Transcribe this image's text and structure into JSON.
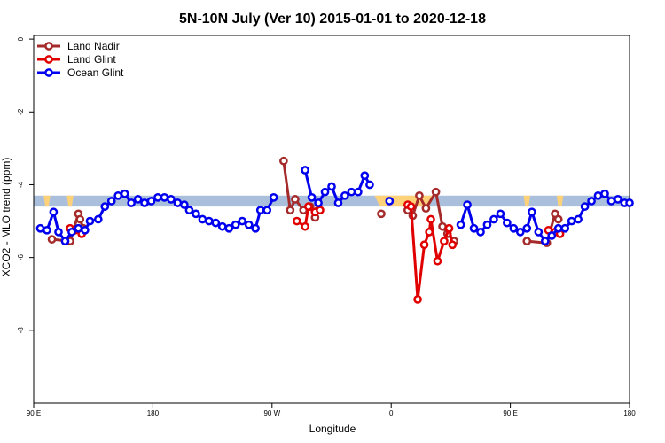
{
  "chart_data": {
    "type": "line",
    "title": "5N-10N July (Ver 10)   2015-01-01 to 2020-12-18",
    "xlabel": "Longitude",
    "ylabel": "XCO2 - MLO trend (ppm)",
    "xlim": [
      0,
      360
    ],
    "ylim": [
      -10,
      0.1
    ],
    "x_ticks": [
      {
        "value": 0,
        "label": "90 E"
      },
      {
        "value": 72,
        "label": "180"
      },
      {
        "value": 144,
        "label": "90 W"
      },
      {
        "value": 216,
        "label": "0"
      },
      {
        "value": 288,
        "label": "90 E"
      },
      {
        "value": 360,
        "label": "180"
      }
    ],
    "y_ticks": [
      0,
      -2,
      -4,
      -6,
      -8
    ],
    "legend_position": "top-left",
    "band": {
      "y_low": -4.6,
      "y_high": -4.3,
      "color": "#a9bfdc"
    },
    "highlight_color": "#ffd27a",
    "highlight_ranges": [
      [
        6,
        10
      ],
      [
        20,
        24
      ],
      [
        206,
        242
      ],
      [
        296,
        300
      ],
      [
        316,
        320
      ]
    ],
    "series": [
      {
        "name": "Land Nadir",
        "color": "#a52a2a",
        "segments": [
          [
            [
              11,
              -5.5
            ],
            [
              22,
              -5.55
            ],
            [
              27,
              -4.8
            ],
            [
              28,
              -4.95
            ],
            [
              30,
              -5.2
            ]
          ],
          [
            [
              151,
              -3.35
            ],
            [
              155,
              -4.7
            ],
            [
              158,
              -4.4
            ],
            [
              163,
              -4.7
            ],
            [
              167,
              -4.6
            ],
            [
              170,
              -4.9
            ],
            [
              172,
              -4.7
            ]
          ],
          [
            [
              210,
              -4.8
            ]
          ],
          [
            [
              226,
              -4.7
            ],
            [
              229,
              -4.85
            ],
            [
              233,
              -4.3
            ],
            [
              237,
              -4.65
            ],
            [
              243,
              -4.2
            ],
            [
              247,
              -5.15
            ],
            [
              250,
              -5.35
            ],
            [
              254,
              -5.55
            ]
          ],
          [
            [
              298,
              -5.55
            ],
            [
              310,
              -5.6
            ],
            [
              315,
              -4.8
            ],
            [
              317,
              -4.95
            ]
          ]
        ]
      },
      {
        "name": "Land Glint",
        "color": "#e00000",
        "segments": [
          [
            [
              22,
              -5.2
            ],
            [
              25,
              -5.25
            ],
            [
              29,
              -5.35
            ]
          ],
          [
            [
              159,
              -5.0
            ],
            [
              164,
              -5.15
            ],
            [
              166,
              -4.6
            ],
            [
              170,
              -4.75
            ],
            [
              173,
              -4.7
            ]
          ],
          [
            [
              226,
              -4.55
            ],
            [
              228,
              -4.6
            ],
            [
              232,
              -7.15
            ],
            [
              236,
              -5.65
            ],
            [
              239,
              -5.3
            ],
            [
              240,
              -4.95
            ],
            [
              244,
              -6.1
            ],
            [
              248,
              -5.55
            ],
            [
              251,
              -5.2
            ],
            [
              253,
              -5.65
            ]
          ],
          [
            [
              311,
              -5.25
            ],
            [
              315,
              -5.3
            ],
            [
              318,
              -5.35
            ]
          ]
        ]
      },
      {
        "name": "Ocean Glint",
        "color": "#0000ee",
        "segments": [
          [
            [
              4,
              -5.2
            ],
            [
              8,
              -5.25
            ],
            [
              12,
              -4.75
            ],
            [
              15,
              -5.3
            ],
            [
              19,
              -5.55
            ],
            [
              23,
              -5.3
            ],
            [
              27,
              -5.2
            ],
            [
              31,
              -5.25
            ],
            [
              34,
              -5.0
            ],
            [
              39,
              -4.95
            ],
            [
              43,
              -4.6
            ],
            [
              47,
              -4.45
            ],
            [
              51,
              -4.3
            ],
            [
              55,
              -4.25
            ],
            [
              59,
              -4.5
            ],
            [
              63,
              -4.4
            ],
            [
              67,
              -4.5
            ],
            [
              71,
              -4.45
            ],
            [
              75,
              -4.35
            ],
            [
              79,
              -4.35
            ],
            [
              83,
              -4.4
            ],
            [
              87,
              -4.5
            ],
            [
              91,
              -4.55
            ],
            [
              94,
              -4.7
            ],
            [
              98,
              -4.8
            ],
            [
              102,
              -4.95
            ],
            [
              106,
              -5.0
            ],
            [
              110,
              -5.05
            ],
            [
              114,
              -5.15
            ],
            [
              118,
              -5.2
            ],
            [
              122,
              -5.1
            ],
            [
              126,
              -5.0
            ],
            [
              130,
              -5.1
            ],
            [
              134,
              -5.2
            ],
            [
              137,
              -4.7
            ],
            [
              141,
              -4.7
            ],
            [
              145,
              -4.35
            ]
          ],
          [
            [
              164,
              -3.6
            ],
            [
              168,
              -4.35
            ],
            [
              172,
              -4.5
            ],
            [
              176,
              -4.2
            ],
            [
              180,
              -4.05
            ],
            [
              184,
              -4.5
            ],
            [
              188,
              -4.3
            ],
            [
              192,
              -4.2
            ],
            [
              196,
              -4.2
            ],
            [
              200,
              -3.75
            ],
            [
              203,
              -4.0
            ]
          ],
          [
            [
              215,
              -4.45
            ]
          ],
          [
            [
              258,
              -5.1
            ],
            [
              262,
              -4.55
            ],
            [
              266,
              -5.2
            ],
            [
              270,
              -5.3
            ],
            [
              274,
              -5.1
            ],
            [
              278,
              -4.95
            ],
            [
              282,
              -4.8
            ],
            [
              286,
              -5.05
            ],
            [
              290,
              -5.2
            ],
            [
              294,
              -5.3
            ],
            [
              298,
              -5.2
            ],
            [
              301,
              -4.75
            ],
            [
              305,
              -5.3
            ],
            [
              309,
              -5.55
            ],
            [
              313,
              -5.4
            ],
            [
              317,
              -5.2
            ],
            [
              321,
              -5.2
            ],
            [
              325,
              -5.0
            ],
            [
              329,
              -4.95
            ],
            [
              333,
              -4.6
            ],
            [
              337,
              -4.45
            ],
            [
              341,
              -4.3
            ],
            [
              345,
              -4.25
            ],
            [
              349,
              -4.45
            ],
            [
              353,
              -4.4
            ],
            [
              357,
              -4.5
            ],
            [
              360,
              -4.5
            ]
          ]
        ]
      }
    ]
  }
}
